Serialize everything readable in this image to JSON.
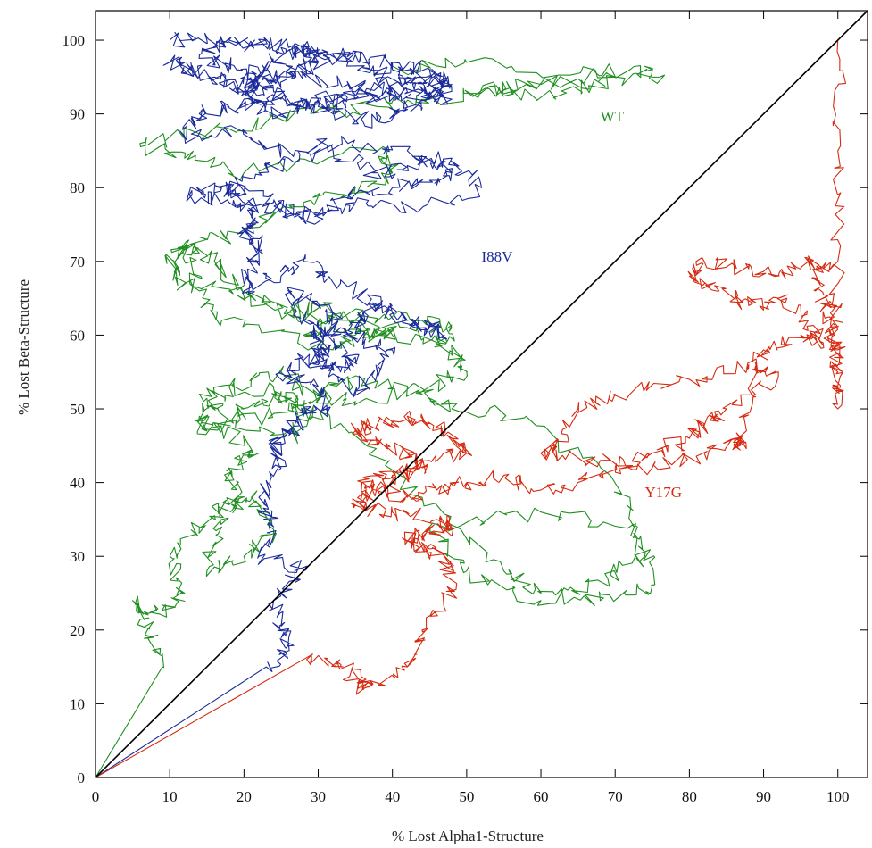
{
  "chart_data": {
    "type": "line",
    "title": "",
    "xlabel": "% Lost Alpha1-Structure",
    "ylabel": "% Lost Beta-Structure",
    "xlim": [
      0,
      104
    ],
    "ylim": [
      0,
      104
    ],
    "x_ticks": [
      0,
      10,
      20,
      30,
      40,
      50,
      60,
      70,
      80,
      90,
      100
    ],
    "y_ticks": [
      0,
      10,
      20,
      30,
      40,
      50,
      60,
      70,
      80,
      90,
      100
    ],
    "grid": false,
    "legend": "none",
    "diagonal": {
      "x": [
        0,
        104
      ],
      "y": [
        0,
        104
      ],
      "color": "#000000"
    },
    "series": [
      {
        "name": "WT",
        "color": "#1f8f1f",
        "label_at": [
          68,
          89
        ],
        "x": [
          0,
          9,
          7,
          5,
          9,
          12,
          10,
          14,
          18,
          21,
          24,
          20,
          15,
          17,
          19,
          18,
          22,
          16,
          27,
          28,
          24,
          14,
          19,
          29,
          34,
          44,
          48,
          58,
          72,
          74,
          69,
          60,
          50,
          45,
          60,
          73,
          75,
          68,
          60,
          55,
          44,
          33,
          27,
          25,
          20,
          15,
          14,
          18,
          25,
          30,
          35,
          45,
          50,
          48,
          42,
          28,
          33,
          44,
          48,
          46,
          30,
          20,
          16,
          12,
          10,
          12,
          18,
          26,
          30,
          38,
          40,
          35,
          32,
          17,
          14,
          12,
          20,
          28,
          35,
          40,
          38,
          20,
          12,
          6,
          18,
          29,
          38,
          45,
          58,
          72,
          76,
          60,
          50,
          62,
          70,
          50,
          40
        ],
        "y": [
          0,
          15,
          20,
          24,
          22,
          25,
          30,
          34,
          37,
          38,
          33,
          30,
          28,
          35,
          38,
          42,
          44,
          48,
          46,
          50,
          53,
          52,
          48,
          51,
          54,
          52,
          50,
          49,
          38,
          30,
          27,
          24,
          28,
          34,
          36,
          34,
          26,
          24,
          25,
          28,
          38,
          48,
          50,
          52,
          50,
          47,
          49,
          53,
          55,
          52,
          51,
          53,
          55,
          58,
          61,
          60,
          63,
          62,
          61,
          59,
          62,
          66,
          70,
          72,
          70,
          67,
          66,
          63,
          64,
          61,
          60,
          60,
          58,
          62,
          66,
          72,
          74,
          78,
          80,
          82,
          85,
          82,
          84,
          86,
          88,
          90,
          91,
          92,
          94,
          96,
          95,
          94,
          93,
          92,
          95,
          97,
          96
        ]
      },
      {
        "name": "I88V",
        "color": "#1a2a9a",
        "label_at": [
          52,
          70
        ],
        "x": [
          0,
          23,
          26,
          25,
          24,
          28,
          22,
          24,
          22,
          25,
          24,
          26,
          28,
          31,
          30,
          25,
          28,
          30,
          33,
          35,
          31,
          28,
          26,
          32,
          33,
          29,
          31,
          30,
          35,
          38,
          40,
          34,
          36,
          38,
          42,
          45,
          47,
          40,
          33,
          28,
          25,
          20,
          21,
          22,
          20,
          21,
          20,
          17,
          13,
          18,
          25,
          30,
          35,
          43,
          52,
          48,
          42,
          38,
          32,
          26,
          22,
          18,
          24,
          28,
          34,
          40,
          45,
          48,
          42,
          34,
          25,
          19,
          12,
          14,
          18,
          25,
          32,
          38,
          42,
          45,
          48,
          42,
          35,
          30,
          25,
          20,
          22,
          27,
          30,
          28,
          24,
          20,
          22,
          27,
          30,
          35,
          40,
          45,
          48,
          42,
          35,
          28,
          20,
          16,
          10,
          13,
          18,
          24,
          30,
          38,
          47,
          40,
          33,
          25,
          18,
          14,
          19,
          26,
          34,
          40,
          48,
          42,
          34,
          26,
          20,
          15,
          10
        ],
        "y": [
          0,
          15,
          18,
          20,
          24,
          28,
          30,
          34,
          38,
          42,
          45,
          47,
          49,
          50,
          53,
          55,
          57,
          56,
          55,
          57,
          60,
          62,
          66,
          63,
          61,
          60,
          58,
          57,
          52,
          55,
          58,
          60,
          62,
          64,
          62,
          61,
          60,
          63,
          67,
          70,
          68,
          66,
          70,
          72,
          74,
          76,
          78,
          80,
          79,
          78,
          77,
          76,
          78,
          77,
          80,
          84,
          83,
          82,
          85,
          84,
          82,
          80,
          78,
          76,
          79,
          80,
          81,
          82,
          85,
          86,
          85,
          88,
          87,
          90,
          91,
          92,
          90,
          89,
          91,
          92,
          94,
          95,
          93,
          92,
          90,
          92,
          94,
          96,
          98,
          99,
          97,
          95,
          94,
          95,
          97,
          98,
          97,
          96,
          94,
          93,
          92,
          91,
          93,
          95,
          97,
          96,
          94,
          93,
          91,
          92,
          94,
          96,
          98,
          99,
          100,
          98,
          96,
          95,
          94,
          93,
          92,
          94,
          97,
          99,
          100,
          100,
          100
        ]
      },
      {
        "name": "Y17G",
        "color": "#d62a10",
        "label_at": [
          74,
          38
        ],
        "x": [
          0,
          28,
          33,
          36,
          36,
          42,
          44,
          48,
          47,
          45,
          42,
          44,
          48,
          46,
          40,
          35,
          37,
          40,
          44,
          42,
          38,
          35,
          38,
          42,
          45,
          48,
          50,
          45,
          40,
          36,
          38,
          42,
          46,
          50,
          55,
          60,
          65,
          70,
          75,
          80,
          82,
          85,
          92,
          88,
          80,
          70,
          65,
          62,
          60,
          68,
          75,
          82,
          87,
          86,
          89,
          90,
          95,
          98,
          96,
          92,
          88,
          84,
          80,
          82,
          88,
          92,
          96,
          98,
          97,
          99,
          99,
          100,
          100,
          100,
          99.5,
          100,
          100,
          100
        ],
        "y": [
          0,
          16,
          15,
          13,
          12,
          15,
          20,
          25,
          30,
          31,
          32,
          33,
          34,
          35,
          36,
          37,
          38,
          40,
          42,
          44,
          45,
          47,
          48,
          49,
          48,
          46,
          44,
          43,
          41,
          40,
          39,
          38,
          39,
          40,
          41,
          39,
          40,
          42,
          44,
          46,
          48,
          50,
          55,
          56,
          54,
          52,
          50,
          45,
          44,
          43,
          42,
          44,
          46,
          45,
          55,
          58,
          60,
          59,
          62,
          65,
          64,
          66,
          68,
          70,
          69,
          68,
          70,
          69,
          66,
          63,
          60,
          58,
          55,
          50,
          60,
          70,
          85,
          100
        ]
      }
    ]
  }
}
